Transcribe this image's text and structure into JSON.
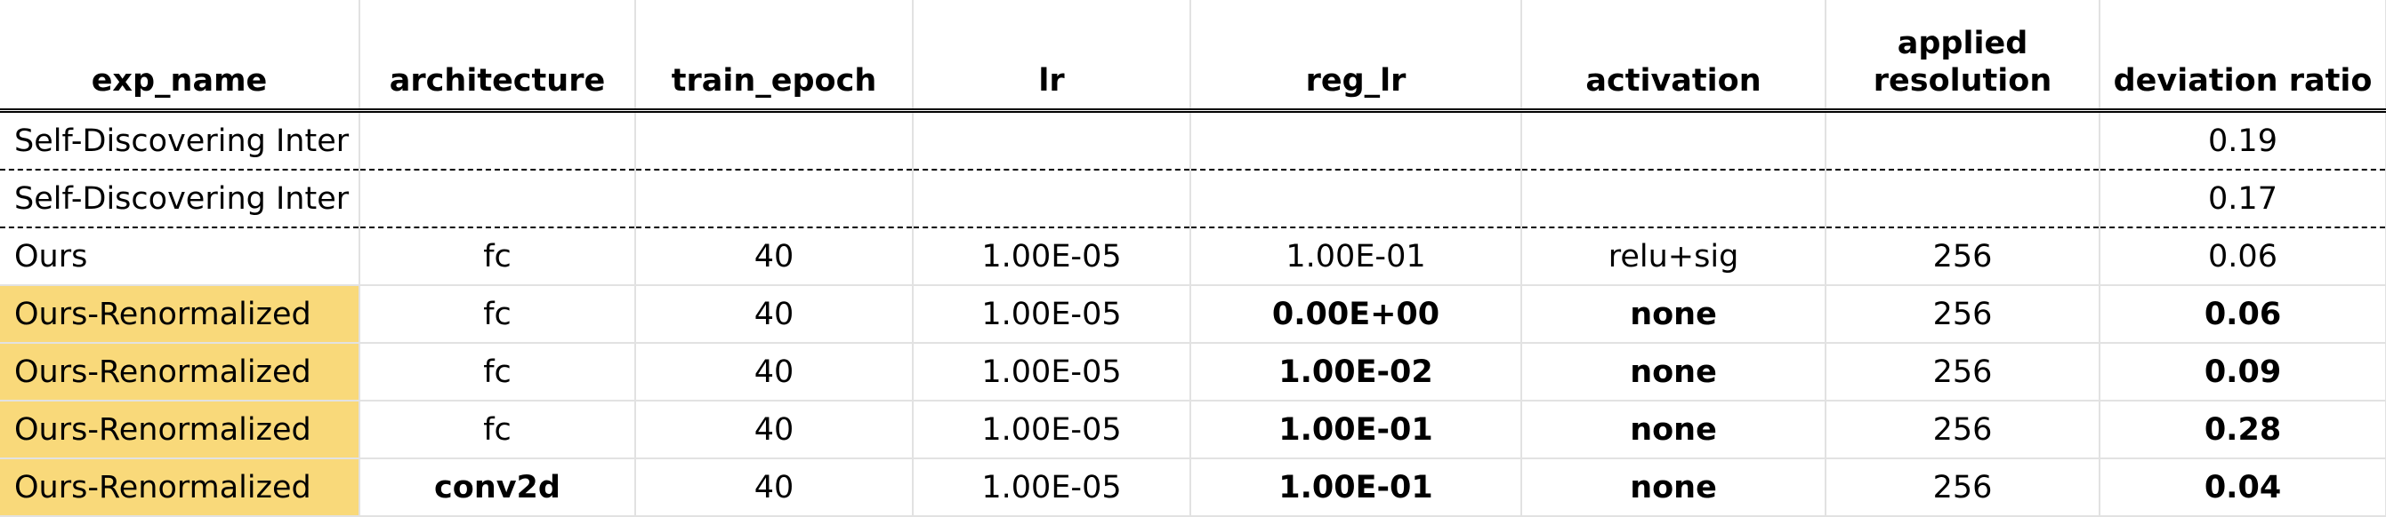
{
  "colors": {
    "highlight": "#f9d97a",
    "gridline": "#e2e2e2",
    "text": "#000000"
  },
  "headers": [
    "exp_name",
    "architecture",
    "train_epoch",
    "lr",
    "reg_lr",
    "activation",
    "applied resolution",
    "deviation ratio"
  ],
  "rows": [
    {
      "exp_name": "Self-Discovering Inter",
      "architecture": "",
      "train_epoch": "",
      "lr": "",
      "reg_lr": "",
      "activation": "",
      "resolution": "",
      "deviation": "0.19"
    },
    {
      "exp_name": "Self-Discovering Inter",
      "architecture": "",
      "train_epoch": "",
      "lr": "",
      "reg_lr": "",
      "activation": "",
      "resolution": "",
      "deviation": "0.17"
    },
    {
      "exp_name": "Ours",
      "architecture": "fc",
      "train_epoch": "40",
      "lr": "1.00E-05",
      "reg_lr": "1.00E-01",
      "activation": "relu+sig",
      "resolution": "256",
      "deviation": "0.06"
    },
    {
      "exp_name": "Ours-Renormalized",
      "architecture": "fc",
      "train_epoch": "40",
      "lr": "1.00E-05",
      "reg_lr": "0.00E+00",
      "activation": "none",
      "resolution": "256",
      "deviation": "0.06"
    },
    {
      "exp_name": "Ours-Renormalized",
      "architecture": "fc",
      "train_epoch": "40",
      "lr": "1.00E-05",
      "reg_lr": "1.00E-02",
      "activation": "none",
      "resolution": "256",
      "deviation": "0.09"
    },
    {
      "exp_name": "Ours-Renormalized",
      "architecture": "fc",
      "train_epoch": "40",
      "lr": "1.00E-05",
      "reg_lr": "1.00E-01",
      "activation": "none",
      "resolution": "256",
      "deviation": "0.28"
    },
    {
      "exp_name": "Ours-Renormalized",
      "architecture": "conv2d",
      "train_epoch": "40",
      "lr": "1.00E-05",
      "reg_lr": "1.00E-01",
      "activation": "none",
      "resolution": "256",
      "deviation": "0.04"
    }
  ]
}
